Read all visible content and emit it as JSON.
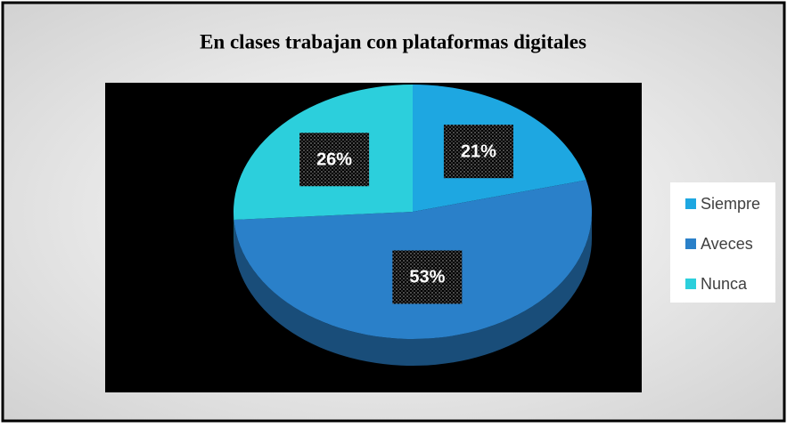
{
  "chart_data": {
    "type": "pie",
    "title": "En clases trabajan con plataformas digitales",
    "categories": [
      "Siempre",
      "Aveces",
      "Nunca"
    ],
    "values": [
      21,
      53,
      26
    ],
    "value_labels": [
      "21%",
      "53%",
      "26%"
    ],
    "colors": [
      "#1ea7e1",
      "#2a80c9",
      "#2ccfdc"
    ],
    "legend": "right"
  }
}
